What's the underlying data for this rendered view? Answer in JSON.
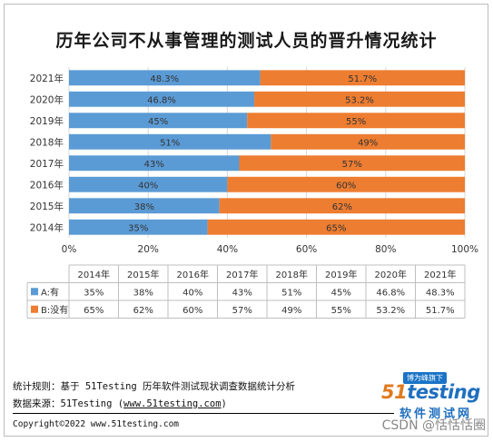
{
  "chart_data": {
    "type": "bar",
    "orientation": "horizontal-stacked-100",
    "title": "历年公司不从事管理的测试人员的晋升情况统计",
    "categories": [
      "2014年",
      "2015年",
      "2016年",
      "2017年",
      "2018年",
      "2019年",
      "2020年",
      "2021年"
    ],
    "series": [
      {
        "name": "A:有",
        "values": [
          35,
          38,
          40,
          43,
          51,
          45,
          46.8,
          48.3
        ],
        "labels": [
          "35%",
          "38%",
          "40%",
          "43%",
          "51%",
          "45%",
          "46.8%",
          "48.3%"
        ],
        "color": "#5b9bd5"
      },
      {
        "name": "B:没有",
        "values": [
          65,
          62,
          60,
          57,
          49,
          55,
          53.2,
          51.7
        ],
        "labels": [
          "65%",
          "62%",
          "60%",
          "57%",
          "49%",
          "55%",
          "53.2%",
          "51.7%"
        ],
        "color": "#ed7d31"
      }
    ],
    "x_ticks": [
      "0%",
      "20%",
      "40%",
      "60%",
      "80%",
      "100%"
    ],
    "xlim": [
      0,
      100
    ],
    "bar_labels": [
      "48.3%",
      "51.7%",
      "46.8%",
      "53.2%",
      "45%",
      "55%",
      "51",
      "49%",
      "43%",
      "57%",
      "40%",
      "60%",
      "38%",
      "62%",
      "35%",
      "65%"
    ],
    "table": {
      "rows": [
        {
          "name": "A:有",
          "values": [
            "35%",
            "38%",
            "40%",
            "43%",
            "51%",
            "45%",
            "46.8%",
            "48.3%"
          ]
        },
        {
          "name": "B:没有",
          "values": [
            "65%",
            "62%",
            "60%",
            "57%",
            "49%",
            "55%",
            "53.2%",
            "51.7%"
          ]
        }
      ]
    },
    "grid": true
  },
  "footer": {
    "rules": "统计规则：基于 51Testing 历年软件测试现状调查数据统计分析",
    "source_label": "数据来源：51Testing (",
    "source_url": "www.51testing.com",
    "source_close": ")",
    "copyright": "Copyright©2022 www.51testing.com"
  },
  "logo": {
    "badge": "博为峰旗下",
    "brand_num": "51",
    "brand_word": "testing",
    "sub": "软件测试网"
  },
  "watermark": "CSDN @恬恬恬圈"
}
